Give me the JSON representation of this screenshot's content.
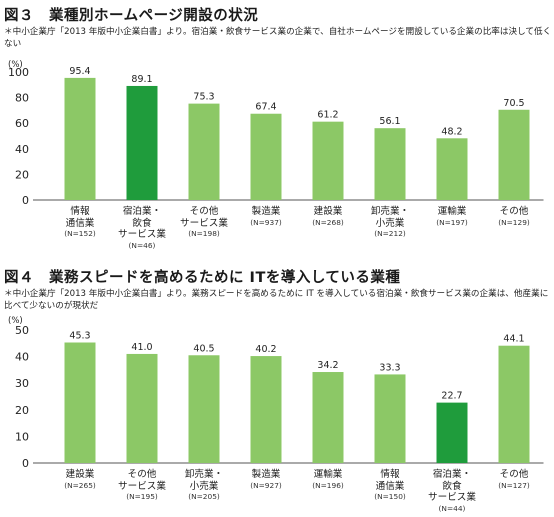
{
  "figures": [
    {
      "title": "図３　業種別ホームページ開設の状況",
      "note": "＊中小企業庁「2013 年版中小企業白書」より。宿泊業・飲食サービス業の企業で、自社ホームページを開設している企業の比率は決して低くない",
      "unit": "(%)"
    },
    {
      "title": "図４　業務スピードを高めるために ITを導入している業種",
      "note": "＊中小企業庁「2013 年版中小企業白書」より。業務スピードを高めるために IT を導入している宿泊業・飲食サービス業の企業は、他産業に比べて少ないのが現状だ",
      "unit": "(%)"
    }
  ],
  "chart_data": [
    {
      "type": "bar",
      "title": "図３　業種別ホームページ開設の状況",
      "ylabel": "(%)",
      "ylim": [
        0,
        100
      ],
      "yticks": [
        0,
        20,
        40,
        60,
        80,
        100
      ],
      "grid": false,
      "categories": [
        "情報\n通信業",
        "宿泊業・\n飲食\nサービス業",
        "その他\nサービス業",
        "製造業",
        "建設業",
        "卸売業・\n小売業",
        "運輸業",
        "その他"
      ],
      "counts": [
        "(N=152)",
        "(N=46)",
        "(N=198)",
        "(N=937)",
        "(N=268)",
        "(N=212)",
        "(N=197)",
        "(N=129)"
      ],
      "values": [
        95.4,
        89.1,
        75.3,
        67.4,
        61.2,
        56.1,
        48.2,
        70.5
      ],
      "value_labels": [
        "95.4",
        "89.1",
        "75.3",
        "67.4",
        "61.2",
        "56.1",
        "48.2",
        "70.5"
      ],
      "highlight_index": 1,
      "colors": {
        "bar": "#8cc866",
        "highlight": "#1f9c3c"
      }
    },
    {
      "type": "bar",
      "title": "図４　業務スピードを高めるために ITを導入している業種",
      "ylabel": "(%)",
      "ylim": [
        0,
        50
      ],
      "yticks": [
        0,
        10,
        20,
        30,
        40,
        50
      ],
      "grid": false,
      "categories": [
        "建設業",
        "その他\nサービス業",
        "卸売業・\n小売業",
        "製造業",
        "運輸業",
        "情報\n通信業",
        "宿泊業・\n飲食\nサービス業",
        "その他"
      ],
      "counts": [
        "(N=265)",
        "(N=195)",
        "(N=205)",
        "(N=927)",
        "(N=196)",
        "(N=150)",
        "(N=44)",
        "(N=127)"
      ],
      "values": [
        45.3,
        41.0,
        40.5,
        40.2,
        34.2,
        33.3,
        22.7,
        44.1
      ],
      "value_labels": [
        "45.3",
        "41.0",
        "40.5",
        "40.2",
        "34.2",
        "33.3",
        "22.7",
        "44.1"
      ],
      "highlight_index": 6,
      "colors": {
        "bar": "#8cc866",
        "highlight": "#1f9c3c"
      }
    }
  ]
}
